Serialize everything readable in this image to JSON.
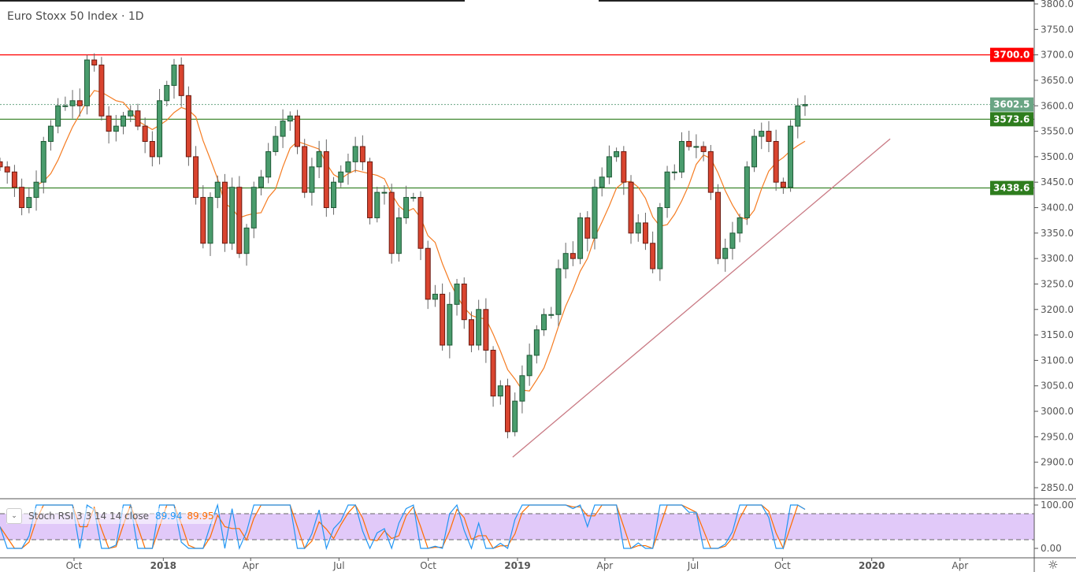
{
  "title": "Euro Stoxx 50 Index · 1D",
  "chart_data": {
    "type": "candlestick",
    "title": "Euro Stoxx 50 Index · 1D",
    "ylim": [
      2850,
      3800
    ],
    "y_ticks": [
      "3800.0",
      "3750.0",
      "3700.0",
      "3650.0",
      "3600.0",
      "3550.0",
      "3500.0",
      "3450.0",
      "3400.0",
      "3350.0",
      "3300.0",
      "3250.0",
      "3200.0",
      "3150.0",
      "3100.0",
      "3050.0",
      "3000.0",
      "2950.0",
      "2900.0",
      "2850.0"
    ],
    "x_ticks": [
      {
        "label": "Oct",
        "date": "2017-10-01"
      },
      {
        "label": "2018",
        "date": "2018-01-01"
      },
      {
        "label": "Apr",
        "date": "2018-04-01"
      },
      {
        "label": "Jul",
        "date": "2018-07-01"
      },
      {
        "label": "Oct",
        "date": "2018-10-01"
      },
      {
        "label": "2019",
        "date": "2019-01-01"
      },
      {
        "label": "Apr",
        "date": "2019-04-01"
      },
      {
        "label": "Jul",
        "date": "2019-07-01"
      },
      {
        "label": "Oct",
        "date": "2019-10-01"
      },
      {
        "label": "2020",
        "date": "2020-01-01"
      },
      {
        "label": "Apr",
        "date": "2020-04-01"
      }
    ],
    "closes": [
      3480,
      3470,
      3440,
      3400,
      3420,
      3450,
      3530,
      3560,
      3600,
      3600,
      3610,
      3600,
      3690,
      3680,
      3580,
      3550,
      3560,
      3580,
      3590,
      3560,
      3530,
      3500,
      3610,
      3640,
      3680,
      3620,
      3500,
      3420,
      3330,
      3420,
      3450,
      3330,
      3440,
      3310,
      3360,
      3440,
      3460,
      3510,
      3540,
      3570,
      3580,
      3520,
      3430,
      3480,
      3510,
      3400,
      3450,
      3470,
      3490,
      3520,
      3490,
      3380,
      3430,
      3430,
      3310,
      3380,
      3420,
      3420,
      3320,
      3220,
      3230,
      3130,
      3210,
      3250,
      3180,
      3130,
      3200,
      3120,
      3030,
      3050,
      2960,
      3020,
      3070,
      3110,
      3160,
      3190,
      3190,
      3280,
      3310,
      3300,
      3380,
      3340,
      3440,
      3460,
      3500,
      3510,
      3450,
      3350,
      3370,
      3330,
      3280,
      3400,
      3470,
      3470,
      3530,
      3520,
      3520,
      3510,
      3430,
      3300,
      3320,
      3350,
      3380,
      3480,
      3540,
      3550,
      3530,
      3450,
      3440,
      3560,
      3600,
      3602.5
    ],
    "last_price": {
      "label": "3602.5",
      "value": 3602.5,
      "color": "#6aa584"
    },
    "horizontal_lines": [
      {
        "label": "3700.0",
        "value": 3700,
        "color": "#ff0000"
      },
      {
        "label": "3573.6",
        "value": 3573.6,
        "color": "#2e7d1e"
      },
      {
        "label": "3438.6",
        "value": 3438.6,
        "color": "#2e7d1e"
      }
    ],
    "trendline": {
      "color": "#c97a84",
      "from": {
        "date": "2018-12-27",
        "price": 2910
      },
      "to": {
        "date": "2020-01-20",
        "price": 3535
      }
    },
    "moving_average_color": "#f57c22",
    "colors": {
      "up": "#4a9c6d",
      "down": "#d9442f"
    }
  },
  "indicator": {
    "name": "Stoch RSI 3 3 14 14 close",
    "k_value": "89.94",
    "d_value": "89.95",
    "k_color": "#2196f3",
    "d_color": "#ff6d00",
    "band_color": "#e1c9f9",
    "y_ticks": [
      "100.00",
      "0.00"
    ],
    "upper": 80,
    "lower": 20
  },
  "icons": {
    "collapse": "chevron-down-icon",
    "settings": "gear-icon"
  }
}
